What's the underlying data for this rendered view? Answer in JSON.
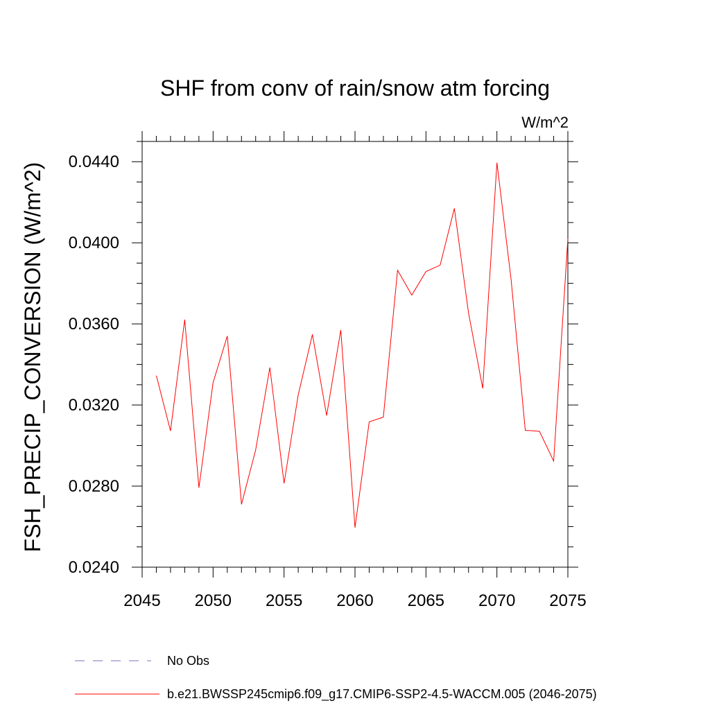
{
  "chart_data": {
    "type": "line",
    "title": "SHF from conv of rain/snow atm forcing",
    "units_label": "W/m^2",
    "xlabel": "",
    "ylabel": "FSH_PRECIP_CONVERSION  (W/m^2)",
    "xlim": [
      2045,
      2075
    ],
    "ylim": [
      0.024,
      0.045
    ],
    "x_ticks": [
      "2045",
      "2050",
      "2055",
      "2060",
      "2065",
      "2070",
      "2075"
    ],
    "y_ticks": [
      "0.0240",
      "0.0280",
      "0.0320",
      "0.0360",
      "0.0400",
      "0.0440"
    ],
    "grid": false,
    "series": [
      {
        "name": "b.e21.BWSSP245cmip6.f09_g17.CMIP6-SSP2-4.5-WACCM.005 (2046-2075)",
        "color": "#ff0000",
        "x": [
          2046,
          2047,
          2048,
          2049,
          2050,
          2051,
          2052,
          2053,
          2054,
          2055,
          2056,
          2057,
          2058,
          2059,
          2060,
          2061,
          2062,
          2063,
          2064,
          2065,
          2066,
          2067,
          2068,
          2069,
          2070,
          2071,
          2072,
          2073,
          2074,
          2075
        ],
        "y": [
          0.03345,
          0.03072,
          0.03621,
          0.02792,
          0.0331,
          0.0354,
          0.0271,
          0.02978,
          0.03385,
          0.02813,
          0.0325,
          0.03548,
          0.03148,
          0.0357,
          0.02595,
          0.03117,
          0.0314,
          0.03865,
          0.03742,
          0.03858,
          0.0389,
          0.0417,
          0.03655,
          0.03282,
          0.04395,
          0.0382,
          0.03075,
          0.0307,
          0.02923,
          0.0402
        ]
      }
    ],
    "legend": {
      "placement": "bottom",
      "entries": [
        {
          "label": "No Obs",
          "color": "#7b6fc0",
          "style": "dashed"
        },
        {
          "label": "b.e21.BWSSP245cmip6.f09_g17.CMIP6-SSP2-4.5-WACCM.005 (2046-2075)",
          "color": "#ff0000",
          "style": "solid"
        }
      ]
    }
  }
}
